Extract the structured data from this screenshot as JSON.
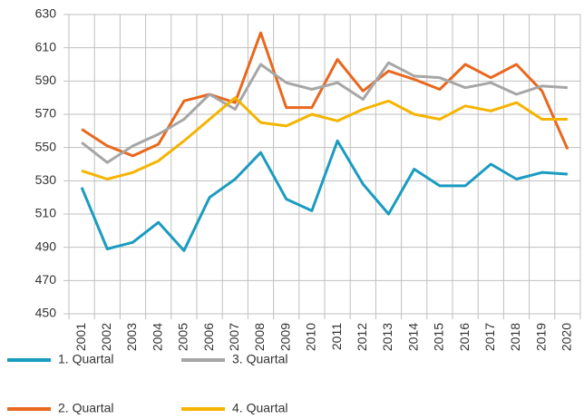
{
  "chart_data": {
    "type": "line",
    "x": [
      "2001",
      "2002",
      "2003",
      "2004",
      "2005",
      "2006",
      "2007",
      "2008",
      "2009",
      "2010",
      "2011",
      "2012",
      "2013",
      "2014",
      "2015",
      "2016",
      "2017",
      "2018",
      "2019",
      "2020"
    ],
    "series": [
      {
        "name": "1. Quartal",
        "color": "#1a9bc0",
        "values": [
          526,
          489,
          493,
          505,
          488,
          520,
          531,
          547,
          519,
          512,
          554,
          528,
          510,
          537,
          527,
          527,
          540,
          531,
          535,
          534
        ]
      },
      {
        "name": "2. Quartal",
        "color": "#e8681e",
        "values": [
          561,
          551,
          545,
          552,
          578,
          582,
          577,
          619,
          574,
          574,
          603,
          584,
          596,
          591,
          585,
          600,
          592,
          600,
          584,
          549
        ]
      },
      {
        "name": "3. Quartal",
        "color": "#a6a6a6",
        "values": [
          553,
          541,
          551,
          558,
          567,
          582,
          573,
          600,
          589,
          585,
          589,
          579,
          601,
          593,
          592,
          586,
          589,
          582,
          587,
          586
        ]
      },
      {
        "name": "4. Quartal",
        "color": "#f5b400",
        "values": [
          536,
          531,
          535,
          542,
          554,
          567,
          580,
          565,
          563,
          570,
          566,
          573,
          578,
          570,
          567,
          575,
          572,
          577,
          567,
          567
        ]
      }
    ],
    "ylim": [
      450,
      630
    ],
    "yticks": [
      450,
      470,
      490,
      510,
      530,
      550,
      570,
      590,
      610,
      630
    ],
    "grid": true,
    "legend": "bottom"
  }
}
